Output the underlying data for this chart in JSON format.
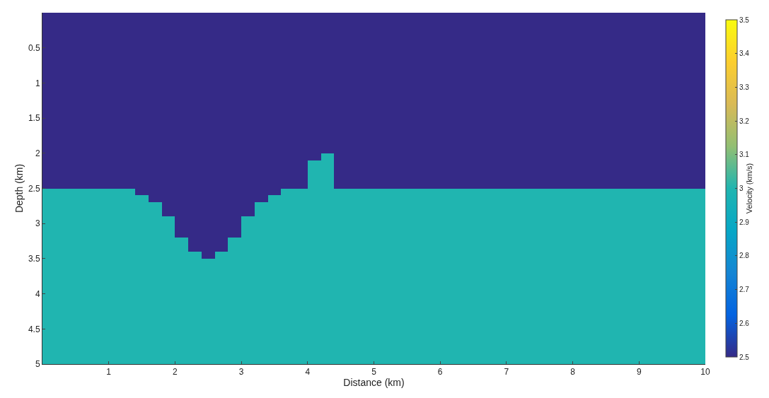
{
  "chart_data": {
    "type": "heatmap",
    "xlabel": "Distance (km)",
    "ylabel": "Depth (km)",
    "clabel": "Velocity (km/s)",
    "x": [
      0.1,
      0.3,
      0.5,
      0.7,
      0.9,
      1.1,
      1.3,
      1.5,
      1.7,
      1.9,
      2.1,
      2.3,
      2.5,
      2.7,
      2.9,
      3.1,
      3.3,
      3.5,
      3.7,
      3.9,
      4.1,
      4.3,
      4.5,
      4.7,
      4.9,
      5.1,
      5.3,
      5.5,
      5.7,
      5.9,
      6.1,
      6.3,
      6.5,
      6.7,
      6.9,
      7.1,
      7.3,
      7.5,
      7.7,
      7.9,
      8.1,
      8.3,
      8.5,
      8.7,
      8.9,
      9.1,
      9.3,
      9.5,
      9.7,
      9.9
    ],
    "cells": [
      [
        2.5,
        2.5,
        2.5,
        2.5,
        2.5,
        2.5,
        2.5,
        2.5,
        2.5,
        2.5,
        2.5,
        2.5,
        2.5,
        2.5,
        2.5,
        2.5,
        2.5,
        2.5,
        2.5,
        2.5,
        2.5,
        2.5,
        2.5,
        2.5,
        2.5,
        2.5,
        2.5,
        2.5,
        2.5,
        2.5,
        2.5,
        2.5,
        2.5,
        2.5,
        2.5,
        2.5,
        2.5,
        2.5,
        2.5,
        2.5,
        2.5,
        2.5,
        2.5,
        2.5,
        2.5,
        2.5,
        2.5,
        2.5,
        2.5,
        2.5
      ],
      [
        2.5,
        2.5,
        2.5,
        2.5,
        2.5,
        2.5,
        2.5,
        2.5,
        2.5,
        2.5,
        2.5,
        2.5,
        2.5,
        2.5,
        2.5,
        2.5,
        2.5,
        2.5,
        2.5,
        2.5,
        2.5,
        2.5,
        2.5,
        2.5,
        2.5,
        2.5,
        2.5,
        2.5,
        2.5,
        2.5,
        2.5,
        2.5,
        2.5,
        2.5,
        2.5,
        2.5,
        2.5,
        2.5,
        2.5,
        2.5,
        2.5,
        2.5,
        2.5,
        2.5,
        2.5,
        2.5,
        2.5,
        2.5,
        2.5,
        2.5
      ],
      [
        2.5,
        2.5,
        2.5,
        2.5,
        2.5,
        2.5,
        2.5,
        2.5,
        2.5,
        2.5,
        2.5,
        2.5,
        2.5,
        2.5,
        2.5,
        2.5,
        2.5,
        2.5,
        2.5,
        2.5,
        2.5,
        2.5,
        2.5,
        2.5,
        2.5,
        2.5,
        2.5,
        2.5,
        2.5,
        2.5,
        2.5,
        2.5,
        2.5,
        2.5,
        2.5,
        2.5,
        2.5,
        2.5,
        2.5,
        2.5,
        2.5,
        2.5,
        2.5,
        2.5,
        2.5,
        2.5,
        2.5,
        2.5,
        2.5,
        2.5
      ],
      [
        2.5,
        2.5,
        2.5,
        2.5,
        2.5,
        2.5,
        2.5,
        2.5,
        2.5,
        2.5,
        2.5,
        2.5,
        2.5,
        2.5,
        2.5,
        2.5,
        2.5,
        2.5,
        2.5,
        2.5,
        2.5,
        2.5,
        2.5,
        2.5,
        2.5,
        2.5,
        2.5,
        2.5,
        2.5,
        2.5,
        2.5,
        2.5,
        2.5,
        2.5,
        2.5,
        2.5,
        2.5,
        2.5,
        2.5,
        2.5,
        2.5,
        2.5,
        2.5,
        2.5,
        2.5,
        2.5,
        2.5,
        2.5,
        2.5,
        2.5
      ],
      [
        2.5,
        2.5,
        2.5,
        2.5,
        2.5,
        2.5,
        2.5,
        2.5,
        2.5,
        2.5,
        2.5,
        2.5,
        2.5,
        2.5,
        2.5,
        2.5,
        2.5,
        2.5,
        2.5,
        2.5,
        2.5,
        2.5,
        2.5,
        2.5,
        2.5,
        2.5,
        2.5,
        2.5,
        2.5,
        2.5,
        2.5,
        2.5,
        2.5,
        2.5,
        2.5,
        2.5,
        2.5,
        2.5,
        2.5,
        2.5,
        2.5,
        2.5,
        2.5,
        2.5,
        2.5,
        2.5,
        2.5,
        2.5,
        2.5,
        2.5
      ],
      [
        2.5,
        2.5,
        2.5,
        2.5,
        2.5,
        2.5,
        2.5,
        2.5,
        2.5,
        2.5,
        2.5,
        2.5,
        2.5,
        2.5,
        2.5,
        2.5,
        2.5,
        2.5,
        2.5,
        2.5,
        2.5,
        2.5,
        2.5,
        2.5,
        2.5,
        2.5,
        2.5,
        2.5,
        2.5,
        2.5,
        2.5,
        2.5,
        2.5,
        2.5,
        2.5,
        2.5,
        2.5,
        2.5,
        2.5,
        2.5,
        2.5,
        2.5,
        2.5,
        2.5,
        2.5,
        2.5,
        2.5,
        2.5,
        2.5,
        2.5
      ],
      [
        2.5,
        2.5,
        2.5,
        2.5,
        2.5,
        2.5,
        2.5,
        2.5,
        2.5,
        2.5,
        2.5,
        2.5,
        2.5,
        2.5,
        2.5,
        2.5,
        2.5,
        2.5,
        2.5,
        2.5,
        2.5,
        2.5,
        2.5,
        2.5,
        2.5,
        2.5,
        2.5,
        2.5,
        2.5,
        2.5,
        2.5,
        2.5,
        2.5,
        2.5,
        2.5,
        2.5,
        2.5,
        2.5,
        2.5,
        2.5,
        2.5,
        2.5,
        2.5,
        2.5,
        2.5,
        2.5,
        2.5,
        2.5,
        2.5,
        2.5
      ],
      [
        2.5,
        2.5,
        2.5,
        2.5,
        2.5,
        2.5,
        2.5,
        2.5,
        2.5,
        2.5,
        2.5,
        2.5,
        2.5,
        2.5,
        2.5,
        2.5,
        2.5,
        2.5,
        2.5,
        2.5,
        2.5,
        2.5,
        2.5,
        2.5,
        2.5,
        2.5,
        2.5,
        2.5,
        2.5,
        2.5,
        2.5,
        2.5,
        2.5,
        2.5,
        2.5,
        2.5,
        2.5,
        2.5,
        2.5,
        2.5,
        2.5,
        2.5,
        2.5,
        2.5,
        2.5,
        2.5,
        2.5,
        2.5,
        2.5,
        2.5
      ],
      [
        2.5,
        2.5,
        2.5,
        2.5,
        2.5,
        2.5,
        2.5,
        2.5,
        2.5,
        2.5,
        2.5,
        2.5,
        2.5,
        2.5,
        2.5,
        2.5,
        2.5,
        2.5,
        2.5,
        2.5,
        2.5,
        2.5,
        2.5,
        2.5,
        2.5,
        2.5,
        2.5,
        2.5,
        2.5,
        2.5,
        2.5,
        2.5,
        2.5,
        2.5,
        2.5,
        2.5,
        2.5,
        2.5,
        2.5,
        2.5,
        2.5,
        2.5,
        2.5,
        2.5,
        2.5,
        2.5,
        2.5,
        2.5,
        2.5,
        2.5
      ],
      [
        2.5,
        2.5,
        2.5,
        2.5,
        2.5,
        2.5,
        2.5,
        2.5,
        2.5,
        2.5,
        2.5,
        2.5,
        2.5,
        2.5,
        2.5,
        2.5,
        2.5,
        2.5,
        2.5,
        2.5,
        2.5,
        2.5,
        2.5,
        2.5,
        2.5,
        2.5,
        2.5,
        2.5,
        2.5,
        2.5,
        2.5,
        2.5,
        2.5,
        2.5,
        2.5,
        2.5,
        2.5,
        2.5,
        2.5,
        2.5,
        2.5,
        2.5,
        2.5,
        2.5,
        2.5,
        2.5,
        2.5,
        2.5,
        2.5,
        2.5
      ],
      [
        2.5,
        2.5,
        2.5,
        2.5,
        2.5,
        2.5,
        2.5,
        2.5,
        2.5,
        2.5,
        2.5,
        2.5,
        2.5,
        2.5,
        2.5,
        2.5,
        2.5,
        2.5,
        2.5,
        2.5,
        2.5,
        2.5,
        2.5,
        2.5,
        2.5,
        2.5,
        2.5,
        2.5,
        2.5,
        2.5,
        2.5,
        2.5,
        2.5,
        2.5,
        2.5,
        2.5,
        2.5,
        2.5,
        2.5,
        2.5,
        2.5,
        2.5,
        2.5,
        2.5,
        2.5,
        2.5,
        2.5,
        2.5,
        2.5,
        2.5
      ],
      [
        2.5,
        2.5,
        2.5,
        2.5,
        2.5,
        2.5,
        2.5,
        2.5,
        2.5,
        2.5,
        2.5,
        2.5,
        2.5,
        2.5,
        2.5,
        2.5,
        2.5,
        2.5,
        2.5,
        2.5,
        2.5,
        2.5,
        2.5,
        2.5,
        2.5,
        2.5,
        2.5,
        2.5,
        2.5,
        2.5,
        2.5,
        2.5,
        2.5,
        2.5,
        2.5,
        2.5,
        2.5,
        2.5,
        2.5,
        2.5,
        2.5,
        2.5,
        2.5,
        2.5,
        2.5,
        2.5,
        2.5,
        2.5,
        2.5,
        2.5
      ],
      [
        2.5,
        2.5,
        2.5,
        2.5,
        2.5,
        2.5,
        2.5,
        2.5,
        2.5,
        2.5,
        2.5,
        2.5,
        2.5,
        2.5,
        2.5,
        2.5,
        2.5,
        2.5,
        2.5,
        2.5,
        2.5,
        2.5,
        2.5,
        2.5,
        2.5,
        2.5,
        2.5,
        2.5,
        2.5,
        2.5,
        2.5,
        2.5,
        2.5,
        2.5,
        2.5,
        2.5,
        2.5,
        2.5,
        2.5,
        2.5,
        2.5,
        2.5,
        2.5,
        2.5,
        2.5,
        2.5,
        2.5,
        2.5,
        2.5,
        2.5
      ],
      [
        2.5,
        2.5,
        2.5,
        2.5,
        2.5,
        2.5,
        2.5,
        2.5,
        2.5,
        2.5,
        2.5,
        2.5,
        2.5,
        2.5,
        2.5,
        2.5,
        2.5,
        2.5,
        2.5,
        2.5,
        2.5,
        2.5,
        2.5,
        2.5,
        2.5,
        2.5,
        2.5,
        2.5,
        2.5,
        2.5,
        2.5,
        2.5,
        2.5,
        2.5,
        2.5,
        2.5,
        2.5,
        2.5,
        2.5,
        2.5,
        2.5,
        2.5,
        2.5,
        2.5,
        2.5,
        2.5,
        2.5,
        2.5,
        2.5,
        2.5
      ],
      [
        2.5,
        2.5,
        2.5,
        2.5,
        2.5,
        2.5,
        2.5,
        2.5,
        2.5,
        2.5,
        2.5,
        2.5,
        2.5,
        2.5,
        2.5,
        2.5,
        2.5,
        2.5,
        2.5,
        2.5,
        2.5,
        2.5,
        2.5,
        2.5,
        2.5,
        2.5,
        2.5,
        2.5,
        2.5,
        2.5,
        2.5,
        2.5,
        2.5,
        2.5,
        2.5,
        2.5,
        2.5,
        2.5,
        2.5,
        2.5,
        2.5,
        2.5,
        2.5,
        2.5,
        2.5,
        2.5,
        2.5,
        2.5,
        2.5,
        2.5
      ],
      [
        2.5,
        2.5,
        2.5,
        2.5,
        2.5,
        2.5,
        2.5,
        2.5,
        2.5,
        2.5,
        2.5,
        2.5,
        2.5,
        2.5,
        2.5,
        2.5,
        2.5,
        2.5,
        2.5,
        2.5,
        2.5,
        2.5,
        2.5,
        2.5,
        2.5,
        2.5,
        2.5,
        2.5,
        2.5,
        2.5,
        2.5,
        2.5,
        2.5,
        2.5,
        2.5,
        2.5,
        2.5,
        2.5,
        2.5,
        2.5,
        2.5,
        2.5,
        2.5,
        2.5,
        2.5,
        2.5,
        2.5,
        2.5,
        2.5,
        2.5
      ],
      [
        2.5,
        2.5,
        2.5,
        2.5,
        2.5,
        2.5,
        2.5,
        2.5,
        2.5,
        2.5,
        2.5,
        2.5,
        2.5,
        2.5,
        2.5,
        2.5,
        2.5,
        2.5,
        2.5,
        2.5,
        2.5,
        2.5,
        2.5,
        2.5,
        2.5,
        2.5,
        2.5,
        2.5,
        2.5,
        2.5,
        2.5,
        2.5,
        2.5,
        2.5,
        2.5,
        2.5,
        2.5,
        2.5,
        2.5,
        2.5,
        2.5,
        2.5,
        2.5,
        2.5,
        2.5,
        2.5,
        2.5,
        2.5,
        2.5,
        2.5
      ],
      [
        2.5,
        2.5,
        2.5,
        2.5,
        2.5,
        2.5,
        2.5,
        2.5,
        2.5,
        2.5,
        2.5,
        2.5,
        2.5,
        2.5,
        2.5,
        2.5,
        2.5,
        2.5,
        2.5,
        2.5,
        2.5,
        2.5,
        2.5,
        2.5,
        2.5,
        2.5,
        2.5,
        2.5,
        2.5,
        2.5,
        2.5,
        2.5,
        2.5,
        2.5,
        2.5,
        2.5,
        2.5,
        2.5,
        2.5,
        2.5,
        2.5,
        2.5,
        2.5,
        2.5,
        2.5,
        2.5,
        2.5,
        2.5,
        2.5,
        2.5
      ],
      [
        2.5,
        2.5,
        2.5,
        2.5,
        2.5,
        2.5,
        2.5,
        2.5,
        2.5,
        2.5,
        2.5,
        2.5,
        2.5,
        2.5,
        2.5,
        2.5,
        2.5,
        2.5,
        2.5,
        2.5,
        2.5,
        2.5,
        2.5,
        2.5,
        2.5,
        2.5,
        2.5,
        2.5,
        2.5,
        2.5,
        2.5,
        2.5,
        2.5,
        2.5,
        2.5,
        2.5,
        2.5,
        2.5,
        2.5,
        2.5,
        2.5,
        2.5,
        2.5,
        2.5,
        2.5,
        2.5,
        2.5,
        2.5,
        2.5,
        2.5
      ],
      [
        2.5,
        2.5,
        2.5,
        2.5,
        2.5,
        2.5,
        2.5,
        2.5,
        2.5,
        2.5,
        2.5,
        2.5,
        2.5,
        2.5,
        2.5,
        2.5,
        2.5,
        2.5,
        2.5,
        2.5,
        2.5,
        2.5,
        2.5,
        2.5,
        2.5,
        2.5,
        2.5,
        2.5,
        2.5,
        2.5,
        2.5,
        2.5,
        2.5,
        2.5,
        2.5,
        2.5,
        2.5,
        2.5,
        2.5,
        2.5,
        2.5,
        2.5,
        2.5,
        2.5,
        2.5,
        2.5,
        2.5,
        2.5,
        2.5,
        2.5
      ],
      [
        2.5,
        2.5,
        2.5,
        2.5,
        2.5,
        2.5,
        2.5,
        2.5,
        2.5,
        2.5,
        2.5,
        2.5,
        2.5,
        2.5,
        2.5,
        2.5,
        2.5,
        2.5,
        2.5,
        2.5,
        2.5,
        3,
        2.5,
        2.5,
        2.5,
        2.5,
        2.5,
        2.5,
        2.5,
        2.5,
        2.5,
        2.5,
        2.5,
        2.5,
        2.5,
        2.5,
        2.5,
        2.5,
        2.5,
        2.5,
        2.5,
        2.5,
        2.5,
        2.5,
        2.5,
        2.5,
        2.5,
        2.5,
        2.5,
        2.5
      ],
      [
        2.5,
        2.5,
        2.5,
        2.5,
        2.5,
        2.5,
        2.5,
        2.5,
        2.5,
        2.5,
        2.5,
        2.5,
        2.5,
        2.5,
        2.5,
        2.5,
        2.5,
        2.5,
        2.5,
        2.5,
        3,
        3,
        2.5,
        2.5,
        2.5,
        2.5,
        2.5,
        2.5,
        2.5,
        2.5,
        2.5,
        2.5,
        2.5,
        2.5,
        2.5,
        2.5,
        2.5,
        2.5,
        2.5,
        2.5,
        2.5,
        2.5,
        2.5,
        2.5,
        2.5,
        2.5,
        2.5,
        2.5,
        2.5,
        2.5
      ],
      [
        2.5,
        2.5,
        2.5,
        2.5,
        2.5,
        2.5,
        2.5,
        2.5,
        2.5,
        2.5,
        2.5,
        2.5,
        2.5,
        2.5,
        2.5,
        2.5,
        2.5,
        2.5,
        2.5,
        2.5,
        3,
        3,
        2.5,
        2.5,
        2.5,
        2.5,
        2.5,
        2.5,
        2.5,
        2.5,
        2.5,
        2.5,
        2.5,
        2.5,
        2.5,
        2.5,
        2.5,
        2.5,
        2.5,
        2.5,
        2.5,
        2.5,
        2.5,
        2.5,
        2.5,
        2.5,
        2.5,
        2.5,
        2.5,
        2.5
      ],
      [
        2.5,
        2.5,
        2.5,
        2.5,
        2.5,
        2.5,
        2.5,
        2.5,
        2.5,
        2.5,
        2.5,
        2.5,
        2.5,
        2.5,
        2.5,
        2.5,
        2.5,
        2.5,
        2.5,
        2.5,
        3,
        3,
        2.5,
        2.5,
        2.5,
        2.5,
        2.5,
        2.5,
        2.5,
        2.5,
        2.5,
        2.5,
        2.5,
        2.5,
        2.5,
        2.5,
        2.5,
        2.5,
        2.5,
        2.5,
        2.5,
        2.5,
        2.5,
        2.5,
        2.5,
        2.5,
        2.5,
        2.5,
        2.5,
        2.5
      ],
      [
        2.5,
        2.5,
        2.5,
        2.5,
        2.5,
        2.5,
        2.5,
        2.5,
        2.5,
        2.5,
        2.5,
        2.5,
        2.5,
        2.5,
        2.5,
        2.5,
        2.5,
        2.5,
        2.5,
        2.5,
        3,
        3,
        2.5,
        2.5,
        2.5,
        2.5,
        2.5,
        2.5,
        2.5,
        2.5,
        2.5,
        2.5,
        2.5,
        2.5,
        2.5,
        2.5,
        2.5,
        2.5,
        2.5,
        2.5,
        2.5,
        2.5,
        2.5,
        2.5,
        2.5,
        2.5,
        2.5,
        2.5,
        2.5,
        2.5
      ],
      [
        3,
        3,
        3,
        3,
        3,
        3,
        3,
        2.5,
        2.5,
        2.5,
        2.5,
        2.5,
        2.5,
        2.5,
        2.5,
        2.5,
        2.5,
        2.5,
        3,
        3,
        3,
        3,
        3,
        3,
        3,
        3,
        3,
        3,
        3,
        3,
        3,
        3,
        3,
        3,
        3,
        3,
        3,
        3,
        3,
        3,
        3,
        3,
        3,
        3,
        3,
        3,
        3,
        3,
        3,
        3
      ],
      [
        3,
        3,
        3,
        3,
        3,
        3,
        3,
        3,
        2.5,
        2.5,
        2.5,
        2.5,
        2.5,
        2.5,
        2.5,
        2.5,
        2.5,
        3,
        3,
        3,
        3,
        3,
        3,
        3,
        3,
        3,
        3,
        3,
        3,
        3,
        3,
        3,
        3,
        3,
        3,
        3,
        3,
        3,
        3,
        3,
        3,
        3,
        3,
        3,
        3,
        3,
        3,
        3,
        3,
        3
      ],
      [
        3,
        3,
        3,
        3,
        3,
        3,
        3,
        3,
        3,
        2.5,
        2.5,
        2.5,
        2.5,
        2.5,
        2.5,
        2.5,
        3,
        3,
        3,
        3,
        3,
        3,
        3,
        3,
        3,
        3,
        3,
        3,
        3,
        3,
        3,
        3,
        3,
        3,
        3,
        3,
        3,
        3,
        3,
        3,
        3,
        3,
        3,
        3,
        3,
        3,
        3,
        3,
        3,
        3
      ],
      [
        3,
        3,
        3,
        3,
        3,
        3,
        3,
        3,
        3,
        2.5,
        2.5,
        2.5,
        2.5,
        2.5,
        2.5,
        2.5,
        3,
        3,
        3,
        3,
        3,
        3,
        3,
        3,
        3,
        3,
        3,
        3,
        3,
        3,
        3,
        3,
        3,
        3,
        3,
        3,
        3,
        3,
        3,
        3,
        3,
        3,
        3,
        3,
        3,
        3,
        3,
        3,
        3,
        3
      ],
      [
        3,
        3,
        3,
        3,
        3,
        3,
        3,
        3,
        3,
        3,
        2.5,
        2.5,
        2.5,
        2.5,
        2.5,
        3,
        3,
        3,
        3,
        3,
        3,
        3,
        3,
        3,
        3,
        3,
        3,
        3,
        3,
        3,
        3,
        3,
        3,
        3,
        3,
        3,
        3,
        3,
        3,
        3,
        3,
        3,
        3,
        3,
        3,
        3,
        3,
        3,
        3,
        3
      ],
      [
        3,
        3,
        3,
        3,
        3,
        3,
        3,
        3,
        3,
        3,
        2.5,
        2.5,
        2.5,
        2.5,
        2.5,
        3,
        3,
        3,
        3,
        3,
        3,
        3,
        3,
        3,
        3,
        3,
        3,
        3,
        3,
        3,
        3,
        3,
        3,
        3,
        3,
        3,
        3,
        3,
        3,
        3,
        3,
        3,
        3,
        3,
        3,
        3,
        3,
        3,
        3,
        3
      ],
      [
        3,
        3,
        3,
        3,
        3,
        3,
        3,
        3,
        3,
        3,
        2.5,
        2.5,
        2.5,
        2.5,
        2.5,
        3,
        3,
        3,
        3,
        3,
        3,
        3,
        3,
        3,
        3,
        3,
        3,
        3,
        3,
        3,
        3,
        3,
        3,
        3,
        3,
        3,
        3,
        3,
        3,
        3,
        3,
        3,
        3,
        3,
        3,
        3,
        3,
        3,
        3,
        3
      ],
      [
        3,
        3,
        3,
        3,
        3,
        3,
        3,
        3,
        3,
        3,
        3,
        2.5,
        2.5,
        2.5,
        3,
        3,
        3,
        3,
        3,
        3,
        3,
        3,
        3,
        3,
        3,
        3,
        3,
        3,
        3,
        3,
        3,
        3,
        3,
        3,
        3,
        3,
        3,
        3,
        3,
        3,
        3,
        3,
        3,
        3,
        3,
        3,
        3,
        3,
        3,
        3
      ],
      [
        3,
        3,
        3,
        3,
        3,
        3,
        3,
        3,
        3,
        3,
        3,
        2.5,
        2.5,
        2.5,
        3,
        3,
        3,
        3,
        3,
        3,
        3,
        3,
        3,
        3,
        3,
        3,
        3,
        3,
        3,
        3,
        3,
        3,
        3,
        3,
        3,
        3,
        3,
        3,
        3,
        3,
        3,
        3,
        3,
        3,
        3,
        3,
        3,
        3,
        3,
        3
      ],
      [
        3,
        3,
        3,
        3,
        3,
        3,
        3,
        3,
        3,
        3,
        3,
        3,
        2.5,
        3,
        3,
        3,
        3,
        3,
        3,
        3,
        3,
        3,
        3,
        3,
        3,
        3,
        3,
        3,
        3,
        3,
        3,
        3,
        3,
        3,
        3,
        3,
        3,
        3,
        3,
        3,
        3,
        3,
        3,
        3,
        3,
        3,
        3,
        3,
        3,
        3
      ],
      [
        3,
        3,
        3,
        3,
        3,
        3,
        3,
        3,
        3,
        3,
        3,
        3,
        3,
        3,
        3,
        3,
        3,
        3,
        3,
        3,
        3,
        3,
        3,
        3,
        3,
        3,
        3,
        3,
        3,
        3,
        3,
        3,
        3,
        3,
        3,
        3,
        3,
        3,
        3,
        3,
        3,
        3,
        3,
        3,
        3,
        3,
        3,
        3,
        3,
        3
      ],
      [
        3,
        3,
        3,
        3,
        3,
        3,
        3,
        3,
        3,
        3,
        3,
        3,
        3,
        3,
        3,
        3,
        3,
        3,
        3,
        3,
        3,
        3,
        3,
        3,
        3,
        3,
        3,
        3,
        3,
        3,
        3,
        3,
        3,
        3,
        3,
        3,
        3,
        3,
        3,
        3,
        3,
        3,
        3,
        3,
        3,
        3,
        3,
        3,
        3,
        3
      ],
      [
        3,
        3,
        3,
        3,
        3,
        3,
        3,
        3,
        3,
        3,
        3,
        3,
        3,
        3,
        3,
        3,
        3,
        3,
        3,
        3,
        3,
        3,
        3,
        3,
        3,
        3,
        3,
        3,
        3,
        3,
        3,
        3,
        3,
        3,
        3,
        3,
        3,
        3,
        3,
        3,
        3,
        3,
        3,
        3,
        3,
        3,
        3,
        3,
        3,
        3
      ],
      [
        3,
        3,
        3,
        3,
        3,
        3,
        3,
        3,
        3,
        3,
        3,
        3,
        3,
        3,
        3,
        3,
        3,
        3,
        3,
        3,
        3,
        3,
        3,
        3,
        3,
        3,
        3,
        3,
        3,
        3,
        3,
        3,
        3,
        3,
        3,
        3,
        3,
        3,
        3,
        3,
        3,
        3,
        3,
        3,
        3,
        3,
        3,
        3,
        3,
        3
      ],
      [
        3,
        3,
        3,
        3,
        3,
        3,
        3,
        3,
        3,
        3,
        3,
        3,
        3,
        3,
        3,
        3,
        3,
        3,
        3,
        3,
        3,
        3,
        3,
        3,
        3,
        3,
        3,
        3,
        3,
        3,
        3,
        3,
        3,
        3,
        3,
        3,
        3,
        3,
        3,
        3,
        3,
        3,
        3,
        3,
        3,
        3,
        3,
        3,
        3,
        3
      ],
      [
        3,
        3,
        3,
        3,
        3,
        3,
        3,
        3,
        3,
        3,
        3,
        3,
        3,
        3,
        3,
        3,
        3,
        3,
        3,
        3,
        3,
        3,
        3,
        3,
        3,
        3,
        3,
        3,
        3,
        3,
        3,
        3,
        3,
        3,
        3,
        3,
        3,
        3,
        3,
        3,
        3,
        3,
        3,
        3,
        3,
        3,
        3,
        3,
        3,
        3
      ],
      [
        3,
        3,
        3,
        3,
        3,
        3,
        3,
        3,
        3,
        3,
        3,
        3,
        3,
        3,
        3,
        3,
        3,
        3,
        3,
        3,
        3,
        3,
        3,
        3,
        3,
        3,
        3,
        3,
        3,
        3,
        3,
        3,
        3,
        3,
        3,
        3,
        3,
        3,
        3,
        3,
        3,
        3,
        3,
        3,
        3,
        3,
        3,
        3,
        3,
        3
      ],
      [
        3,
        3,
        3,
        3,
        3,
        3,
        3,
        3,
        3,
        3,
        3,
        3,
        3,
        3,
        3,
        3,
        3,
        3,
        3,
        3,
        3,
        3,
        3,
        3,
        3,
        3,
        3,
        3,
        3,
        3,
        3,
        3,
        3,
        3,
        3,
        3,
        3,
        3,
        3,
        3,
        3,
        3,
        3,
        3,
        3,
        3,
        3,
        3,
        3,
        3
      ],
      [
        3,
        3,
        3,
        3,
        3,
        3,
        3,
        3,
        3,
        3,
        3,
        3,
        3,
        3,
        3,
        3,
        3,
        3,
        3,
        3,
        3,
        3,
        3,
        3,
        3,
        3,
        3,
        3,
        3,
        3,
        3,
        3,
        3,
        3,
        3,
        3,
        3,
        3,
        3,
        3,
        3,
        3,
        3,
        3,
        3,
        3,
        3,
        3,
        3,
        3
      ],
      [
        3,
        3,
        3,
        3,
        3,
        3,
        3,
        3,
        3,
        3,
        3,
        3,
        3,
        3,
        3,
        3,
        3,
        3,
        3,
        3,
        3,
        3,
        3,
        3,
        3,
        3,
        3,
        3,
        3,
        3,
        3,
        3,
        3,
        3,
        3,
        3,
        3,
        3,
        3,
        3,
        3,
        3,
        3,
        3,
        3,
        3,
        3,
        3,
        3,
        3
      ],
      [
        3,
        3,
        3,
        3,
        3,
        3,
        3,
        3,
        3,
        3,
        3,
        3,
        3,
        3,
        3,
        3,
        3,
        3,
        3,
        3,
        3,
        3,
        3,
        3,
        3,
        3,
        3,
        3,
        3,
        3,
        3,
        3,
        3,
        3,
        3,
        3,
        3,
        3,
        3,
        3,
        3,
        3,
        3,
        3,
        3,
        3,
        3,
        3,
        3,
        3
      ],
      [
        3,
        3,
        3,
        3,
        3,
        3,
        3,
        3,
        3,
        3,
        3,
        3,
        3,
        3,
        3,
        3,
        3,
        3,
        3,
        3,
        3,
        3,
        3,
        3,
        3,
        3,
        3,
        3,
        3,
        3,
        3,
        3,
        3,
        3,
        3,
        3,
        3,
        3,
        3,
        3,
        3,
        3,
        3,
        3,
        3,
        3,
        3,
        3,
        3,
        3
      ],
      [
        3,
        3,
        3,
        3,
        3,
        3,
        3,
        3,
        3,
        3,
        3,
        3,
        3,
        3,
        3,
        3,
        3,
        3,
        3,
        3,
        3,
        3,
        3,
        3,
        3,
        3,
        3,
        3,
        3,
        3,
        3,
        3,
        3,
        3,
        3,
        3,
        3,
        3,
        3,
        3,
        3,
        3,
        3,
        3,
        3,
        3,
        3,
        3,
        3,
        3
      ],
      [
        3,
        3,
        3,
        3,
        3,
        3,
        3,
        3,
        3,
        3,
        3,
        3,
        3,
        3,
        3,
        3,
        3,
        3,
        3,
        3,
        3,
        3,
        3,
        3,
        3,
        3,
        3,
        3,
        3,
        3,
        3,
        3,
        3,
        3,
        3,
        3,
        3,
        3,
        3,
        3,
        3,
        3,
        3,
        3,
        3,
        3,
        3,
        3,
        3,
        3
      ],
      [
        3,
        3,
        3,
        3,
        3,
        3,
        3,
        3,
        3,
        3,
        3,
        3,
        3,
        3,
        3,
        3,
        3,
        3,
        3,
        3,
        3,
        3,
        3,
        3,
        3,
        3,
        3,
        3,
        3,
        3,
        3,
        3,
        3,
        3,
        3,
        3,
        3,
        3,
        3,
        3,
        3,
        3,
        3,
        3,
        3,
        3,
        3,
        3,
        3,
        3
      ]
    ],
    "colors": [
      "#352a87",
      "#0363e1",
      "#1485d4",
      "#06a7c6",
      "#20b5b0",
      "#92bf73",
      "#d9ba56",
      "#fcce2e",
      "#f9fb0e"
    ],
    "xlim": [
      0,
      10
    ],
    "xticks": [
      1,
      2,
      3,
      4,
      5,
      6,
      7,
      8,
      9,
      10
    ],
    "ylim": [
      5,
      0
    ],
    "yticks": [
      0.5,
      1,
      1.5,
      2,
      2.5,
      3,
      3.5,
      4,
      4.5,
      5
    ],
    "clim": [
      2.5,
      3.5
    ],
    "cticks": [
      2.5,
      2.6,
      2.7,
      2.8,
      2.9,
      3,
      3.1,
      3.2,
      3.3,
      3.4,
      3.5
    ]
  }
}
